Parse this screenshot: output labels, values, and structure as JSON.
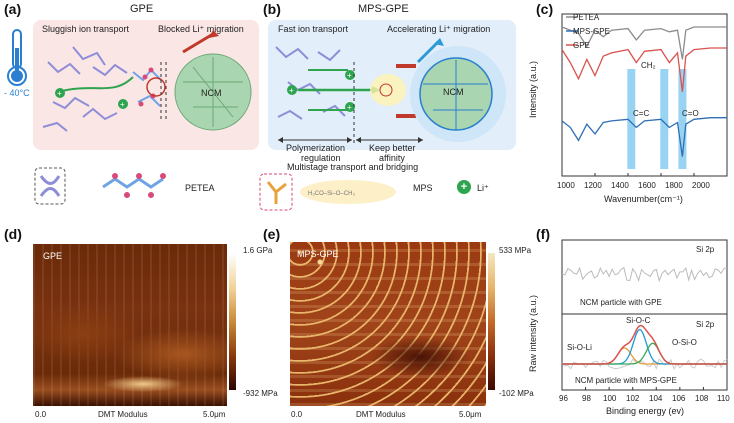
{
  "panel_a": {
    "label": "(a)",
    "title": "GPE",
    "temperature": "- 40°C",
    "note_left": "Sluggish ion transport",
    "note_right": "Blocked Li⁺ migration",
    "particle": "NCM",
    "legend_label": "PETEA"
  },
  "panel_b": {
    "label": "(b)",
    "title": "MPS-GPE",
    "note_left": "Fast ion transport",
    "note_right": "Accelerating Li⁺ migration",
    "particle": "NCM",
    "arrow_left_1": "Polymerization",
    "arrow_left_2": "regulation",
    "arrow_right_1": "Keep better",
    "arrow_right_2": "affinity",
    "caption": "Multistage transport and bridging",
    "legend_mps": "MPS",
    "legend_li": "Li⁺",
    "li_symbol": "+"
  },
  "panel_c": {
    "label": "(c)",
    "legend": [
      "PETEA",
      "MPS-GPE",
      "GPE"
    ],
    "colors": {
      "PETEA": "#8c8c8c",
      "MPS-GPE": "#2f6fb5",
      "GPE": "#d9534f",
      "band": "#7fc8ef"
    },
    "band_labels": {
      "ch2": "CH₂",
      "cc": "C=C",
      "co": "C=O"
    },
    "xlabel": "Wavenumber(cm⁻¹)",
    "ylabel": "Intensity (a.u.)",
    "xticks": [
      "1000",
      "1200",
      "1400",
      "1600",
      "1800",
      "2000"
    ]
  },
  "panel_d": {
    "label": "(d)",
    "name": "GPE",
    "scale_max": "1.6 GPa",
    "scale_min": "-932 MPa",
    "x_start": "0.0",
    "x_mid": "DMT Modulus",
    "x_end": "5.0μm"
  },
  "panel_e": {
    "label": "(e)",
    "name": "MPS-GPE",
    "scale_max": "533 MPa",
    "scale_min": "-102 MPa",
    "x_start": "0.0",
    "x_mid": "DMT Modulus",
    "x_end": "5.0μm"
  },
  "panel_f": {
    "label": "(f)",
    "top_tag": "Si 2p",
    "top_caption": "NCM particle with GPE",
    "bottom_tag": "Si 2p",
    "peak_sioc": "Si-O-C",
    "peak_sioli": "Si-O-Li",
    "peak_siosio": "O-Si-O",
    "bottom_caption": "NCM particle with MPS-GPE",
    "ylabel": "Raw intensity (a.u.)",
    "xlabel": "Binding energy (ev)",
    "xticks": [
      "96",
      "98",
      "100",
      "102",
      "104",
      "106",
      "108",
      "110"
    ]
  },
  "chart_data": [
    {
      "type": "line",
      "panel": "c",
      "title": "",
      "xlabel": "Wavenumber(cm⁻¹)",
      "ylabel": "Intensity (a.u.)",
      "xlim": [
        1000,
        2000
      ],
      "series": [
        {
          "name": "PETEA",
          "x": [
            1000,
            1100,
            1150,
            1200,
            1250,
            1300,
            1400,
            1450,
            1500,
            1600,
            1650,
            1700,
            1730,
            1750,
            1800,
            1900,
            2000
          ],
          "values": [
            0.92,
            0.88,
            0.8,
            0.9,
            0.86,
            0.9,
            0.91,
            0.84,
            0.9,
            0.91,
            0.89,
            0.9,
            0.72,
            0.9,
            0.92,
            0.92,
            0.92
          ]
        },
        {
          "name": "GPE",
          "x": [
            1000,
            1050,
            1100,
            1150,
            1200,
            1250,
            1300,
            1400,
            1450,
            1500,
            1600,
            1650,
            1700,
            1730,
            1750,
            1800,
            1900,
            2000
          ],
          "values": [
            0.78,
            0.7,
            0.6,
            0.72,
            0.62,
            0.74,
            0.76,
            0.78,
            0.7,
            0.77,
            0.78,
            0.7,
            0.76,
            0.52,
            0.74,
            0.78,
            0.79,
            0.79
          ]
        },
        {
          "name": "MPS-GPE",
          "x": [
            1000,
            1050,
            1100,
            1150,
            1200,
            1250,
            1300,
            1400,
            1450,
            1500,
            1600,
            1650,
            1700,
            1730,
            1750,
            1800,
            1900,
            2000
          ],
          "values": [
            0.34,
            0.3,
            0.22,
            0.32,
            0.26,
            0.33,
            0.34,
            0.35,
            0.3,
            0.34,
            0.35,
            0.3,
            0.33,
            0.12,
            0.32,
            0.35,
            0.36,
            0.36
          ]
        }
      ],
      "bands": [
        1420,
        1620,
        1730
      ]
    },
    {
      "type": "line",
      "panel": "f",
      "xlabel": "Binding energy (ev)",
      "ylabel": "Raw intensity (a.u.)",
      "xlim": [
        96,
        110
      ],
      "series": [
        {
          "name": "Si-O-Li",
          "center": 101.3,
          "height": 0.35
        },
        {
          "name": "Si-O-C",
          "center": 102.6,
          "height": 0.75
        },
        {
          "name": "O-Si-O",
          "center": 103.7,
          "height": 0.45
        }
      ]
    }
  ]
}
